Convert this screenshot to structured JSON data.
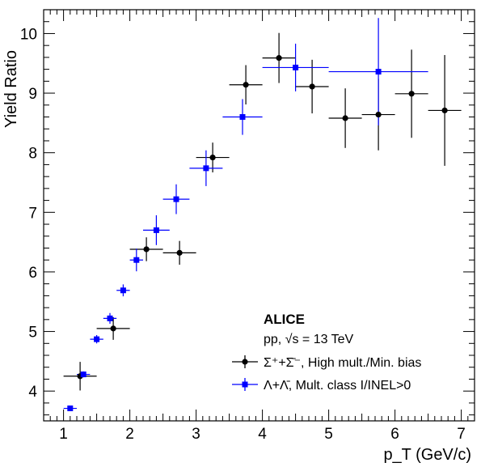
{
  "chart_data": {
    "type": "scatter",
    "title": "",
    "xlabel": "p_T (GeV/c)",
    "ylabel": "Yield Ratio",
    "xlim": [
      0.7,
      7.2
    ],
    "ylim": [
      3.5,
      10.4
    ],
    "x_ticks": [
      1,
      2,
      3,
      4,
      5,
      6,
      7
    ],
    "y_ticks": [
      4,
      5,
      6,
      7,
      8,
      9,
      10
    ],
    "grid": false,
    "legend_placement": "bottom-right",
    "legend": {
      "experiment": "ALICE",
      "system": "pp, √s = 13 TeV"
    },
    "series": [
      {
        "name": "Σ⁺+Σ̄⁻, High mult./Min. bias",
        "color": "#000000",
        "marker": "circle",
        "points": [
          {
            "x": 1.25,
            "y": 4.25,
            "xerr": 0.25,
            "yerr": 0.24
          },
          {
            "x": 1.75,
            "y": 5.05,
            "xerr": 0.25,
            "yerr": 0.19
          },
          {
            "x": 2.25,
            "y": 6.38,
            "xerr": 0.25,
            "yerr": 0.2
          },
          {
            "x": 2.75,
            "y": 6.32,
            "xerr": 0.25,
            "yerr": 0.2
          },
          {
            "x": 3.25,
            "y": 7.92,
            "xerr": 0.25,
            "yerr": 0.25
          },
          {
            "x": 3.75,
            "y": 9.14,
            "xerr": 0.25,
            "yerr": 0.33
          },
          {
            "x": 4.25,
            "y": 9.59,
            "xerr": 0.25,
            "yerr": 0.42
          },
          {
            "x": 4.75,
            "y": 9.11,
            "xerr": 0.25,
            "yerr": 0.45
          },
          {
            "x": 5.25,
            "y": 8.58,
            "xerr": 0.25,
            "yerr": 0.5
          },
          {
            "x": 5.75,
            "y": 8.64,
            "xerr": 0.25,
            "yerr": 0.6
          },
          {
            "x": 6.25,
            "y": 8.99,
            "xerr": 0.25,
            "yerr": 0.74
          },
          {
            "x": 6.75,
            "y": 8.71,
            "xerr": 0.25,
            "yerr": 0.93
          }
        ]
      },
      {
        "name": "Λ+Λ̄,  Mult. class I/INEL>0",
        "color": "#0000ff",
        "marker": "square",
        "points": [
          {
            "x": 1.1,
            "y": 3.71,
            "xerr": 0.1,
            "yerr": 0.03
          },
          {
            "x": 1.3,
            "y": 4.28,
            "xerr": 0.1,
            "yerr": 0.05
          },
          {
            "x": 1.5,
            "y": 4.87,
            "xerr": 0.1,
            "yerr": 0.07
          },
          {
            "x": 1.7,
            "y": 5.22,
            "xerr": 0.1,
            "yerr": 0.09
          },
          {
            "x": 1.9,
            "y": 5.69,
            "xerr": 0.1,
            "yerr": 0.1
          },
          {
            "x": 2.1,
            "y": 6.2,
            "xerr": 0.1,
            "yerr": 0.19
          },
          {
            "x": 2.4,
            "y": 6.7,
            "xerr": 0.2,
            "yerr": 0.25
          },
          {
            "x": 2.7,
            "y": 7.22,
            "xerr": 0.2,
            "yerr": 0.25
          },
          {
            "x": 3.15,
            "y": 7.74,
            "xerr": 0.25,
            "yerr": 0.3
          },
          {
            "x": 3.7,
            "y": 8.6,
            "xerr": 0.3,
            "yerr": 0.3
          },
          {
            "x": 4.5,
            "y": 9.43,
            "xerr": 0.5,
            "yerr": 0.4
          },
          {
            "x": 5.75,
            "y": 9.36,
            "xerr": 0.75,
            "yerr": 0.9
          }
        ]
      }
    ]
  }
}
